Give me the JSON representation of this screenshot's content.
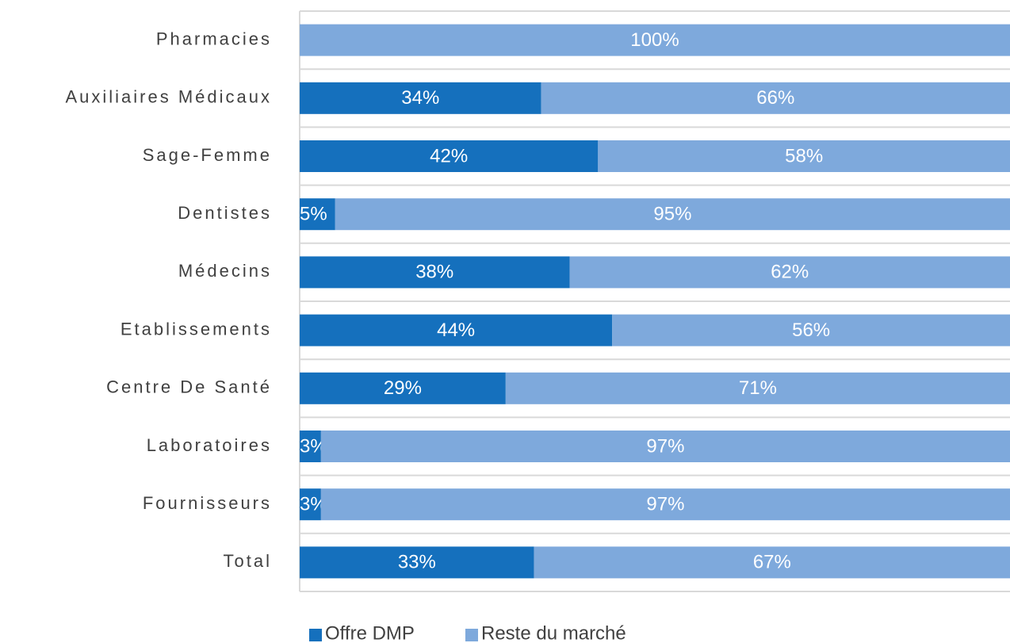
{
  "chart_data": {
    "type": "bar",
    "orientation": "horizontal",
    "stacked": true,
    "categories": [
      "Pharmacies",
      "Auxiliaires Médicaux",
      "Sage-Femme",
      "Dentistes",
      "Médecins",
      "Etablissements",
      "Centre De Santé",
      "Laboratoires",
      "Fournisseurs",
      "Total"
    ],
    "series": [
      {
        "name": "Offre DMP",
        "color": "#1570bd",
        "values": [
          0,
          34,
          42,
          5,
          38,
          44,
          29,
          3,
          3,
          33
        ],
        "value_labels": [
          null,
          "34%",
          "42%",
          "5%",
          "38%",
          "44%",
          "29%",
          "3%",
          "3%",
          "33%"
        ]
      },
      {
        "name": "Reste du marché",
        "color": "#7ea9dc",
        "values": [
          100,
          66,
          58,
          95,
          62,
          56,
          71,
          97,
          97,
          67
        ],
        "value_labels": [
          "100%",
          "66%",
          "58%",
          "95%",
          "62%",
          "56%",
          "71%",
          "97%",
          "97%",
          "67%"
        ]
      }
    ],
    "xlim": [
      0,
      100
    ],
    "grid": true,
    "legend": "bottom"
  }
}
